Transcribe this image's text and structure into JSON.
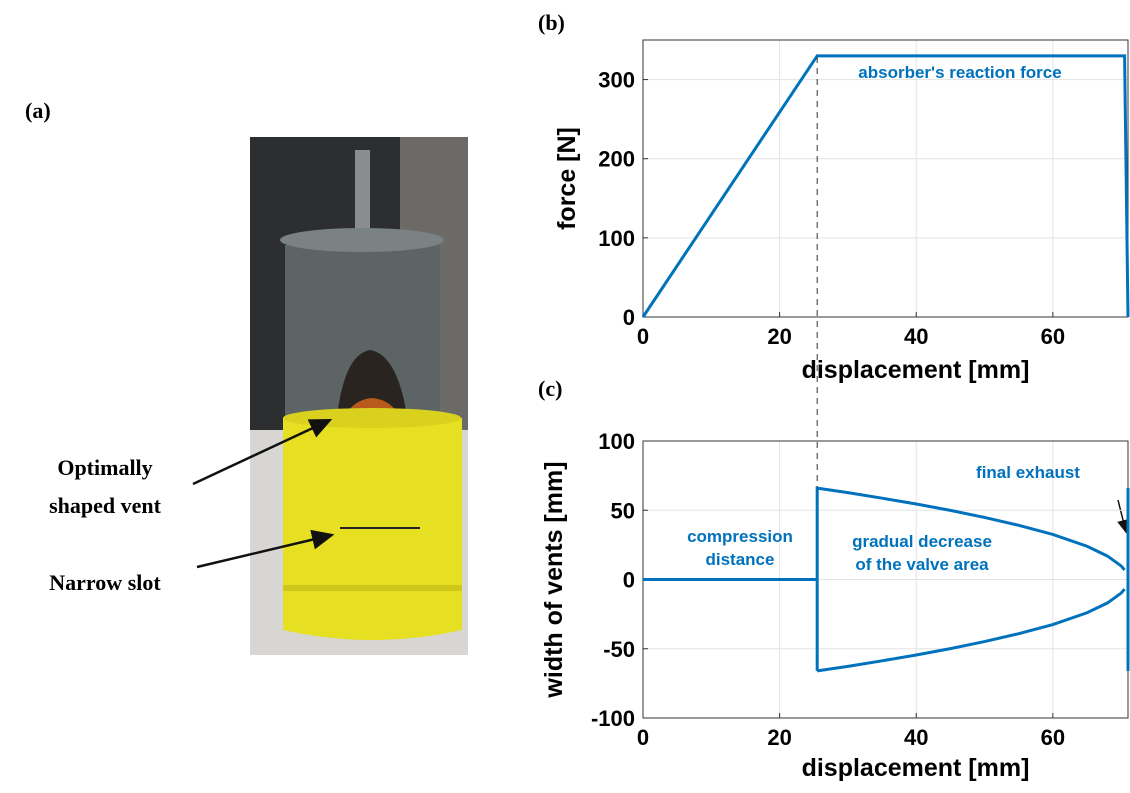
{
  "panel_a": {
    "label": "(a)",
    "annotations": [
      [
        "Optimally",
        "shaped vent"
      ],
      [
        "Narrow slot"
      ]
    ]
  },
  "chart_data": [
    {
      "type": "line",
      "panel_label": "(b)",
      "xlabel": "displacement [mm]",
      "ylabel": "force [N]",
      "xlim": [
        0,
        71
      ],
      "ylim": [
        0,
        350
      ],
      "xticks": [
        0,
        20,
        40,
        60
      ],
      "yticks": [
        0,
        100,
        200,
        300
      ],
      "grid": true,
      "marker_x": 25.5,
      "series": [
        {
          "color": "#0072bd",
          "x": [
            0,
            25.5,
            70.5,
            71
          ],
          "values": [
            0,
            330,
            330,
            0
          ]
        }
      ],
      "annotations": [
        {
          "text": [
            "absorber's reaction force"
          ]
        }
      ]
    },
    {
      "type": "line",
      "panel_label": "(c)",
      "xlabel": "displacement [mm]",
      "ylabel": "width of vents [mm]",
      "xlim": [
        0,
        71
      ],
      "ylim": [
        -100,
        100
      ],
      "xticks": [
        0,
        20,
        40,
        60
      ],
      "yticks": [
        -100,
        -50,
        0,
        50,
        100
      ],
      "grid": true,
      "series": [
        {
          "color": "#0072bd",
          "x": [
            0,
            25.5,
            25.5,
            25.5,
            30,
            35,
            40,
            45,
            50,
            55,
            60,
            65,
            68,
            70,
            70.5
          ],
          "values": [
            0,
            0,
            -66,
            66,
            62.7,
            58.7,
            54.5,
            49.9,
            44.8,
            39.1,
            32.5,
            24,
            16.9,
            9.8,
            6.9
          ]
        },
        {
          "color": "#0072bd",
          "x": [
            25.5,
            30,
            35,
            40,
            45,
            50,
            55,
            60,
            65,
            68,
            70,
            70.5
          ],
          "values": [
            -66,
            -62.7,
            -58.7,
            -54.5,
            -49.9,
            -44.8,
            -39.1,
            -32.5,
            -24,
            -16.9,
            -9.8,
            -6.9
          ]
        },
        {
          "color": "#0072bd",
          "x": [
            71,
            71
          ],
          "values": [
            66,
            -66
          ]
        }
      ],
      "annotations": [
        {
          "text": [
            "compression",
            "distance"
          ]
        },
        {
          "text": [
            "gradual decrease",
            "of the valve area"
          ]
        },
        {
          "text": [
            "final exhaust"
          ]
        }
      ]
    }
  ]
}
